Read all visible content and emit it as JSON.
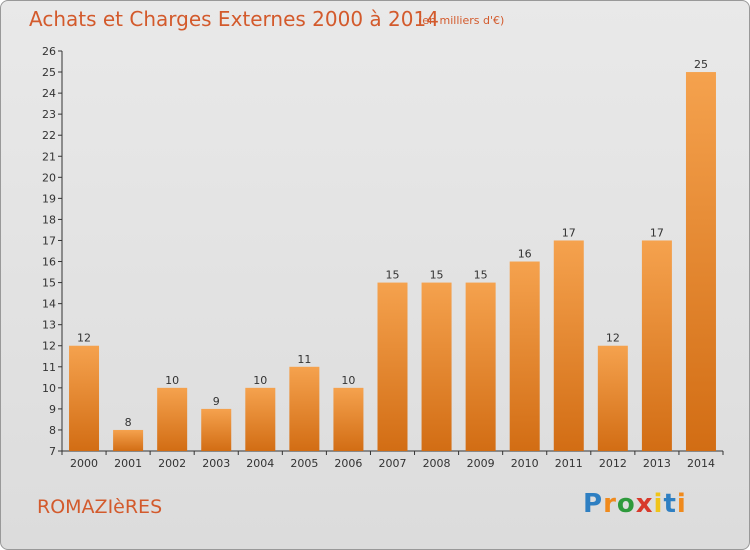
{
  "header": {
    "title": "Achats et Charges Externes 2000 à 2014",
    "subtitle": "(en milliers d'€)"
  },
  "footer": {
    "commune": "ROMAZIèRES",
    "logo": "Proxiti"
  },
  "colors": {
    "bar_top": "#f5a24e",
    "bar_bottom": "#d26d14",
    "title": "#d35a2c",
    "logo": [
      "#2e7fc2",
      "#f08a1c",
      "#2e9a3c",
      "#d8392b",
      "#f0c419",
      "#2e7fc2",
      "#f08a1c"
    ]
  },
  "chart_data": {
    "type": "bar",
    "title": "Achats et Charges Externes 2000 à 2014",
    "subtitle": "(en milliers d'€)",
    "categories": [
      "2000",
      "2001",
      "2002",
      "2003",
      "2004",
      "2005",
      "2006",
      "2007",
      "2008",
      "2009",
      "2010",
      "2011",
      "2012",
      "2013",
      "2014"
    ],
    "values": [
      12,
      8,
      10,
      9,
      10,
      11,
      10,
      15,
      15,
      15,
      16,
      17,
      12,
      17,
      25
    ],
    "ylim": [
      7,
      26
    ],
    "yticks": [
      7,
      8,
      9,
      10,
      11,
      12,
      13,
      14,
      15,
      16,
      17,
      18,
      19,
      20,
      21,
      22,
      23,
      24,
      25,
      26
    ],
    "grid": false,
    "legend": "none"
  }
}
